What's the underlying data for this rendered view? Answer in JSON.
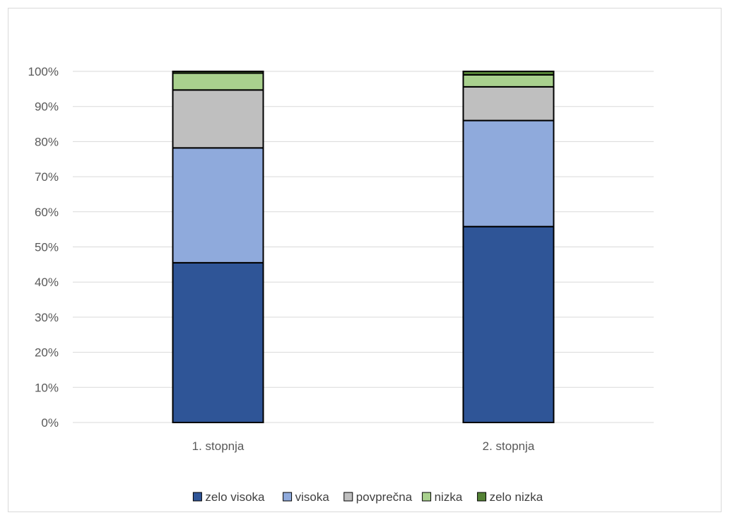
{
  "chart_data": {
    "type": "bar",
    "stacked": true,
    "normalized": true,
    "categories": [
      "1. stopnja",
      "2. stopnja"
    ],
    "series": [
      {
        "name": "zelo visoka",
        "values": [
          45.5,
          55.8
        ],
        "color": "#2f5597"
      },
      {
        "name": "visoka",
        "values": [
          32.7,
          30.2
        ],
        "color": "#8faadc"
      },
      {
        "name": "povprečna",
        "values": [
          16.5,
          9.6
        ],
        "color": "#bfbfbf"
      },
      {
        "name": "nizka",
        "values": [
          4.8,
          3.4
        ],
        "color": "#a9d18e"
      },
      {
        "name": "zelo nizka",
        "values": [
          0.5,
          1.0
        ],
        "color": "#548235"
      }
    ],
    "title": "",
    "xlabel": "",
    "ylabel": "",
    "ylim": [
      0,
      100
    ],
    "yticks": [
      "0%",
      "10%",
      "20%",
      "30%",
      "40%",
      "50%",
      "60%",
      "70%",
      "80%",
      "90%",
      "100%"
    ],
    "grid": true,
    "legend_position": "bottom",
    "colors": {
      "gridline": "#d9d9d9",
      "axis_line": "#d9d9d9",
      "bar_outline": "#000000",
      "tick_text": "#595959",
      "legend_text": "#404040"
    }
  }
}
